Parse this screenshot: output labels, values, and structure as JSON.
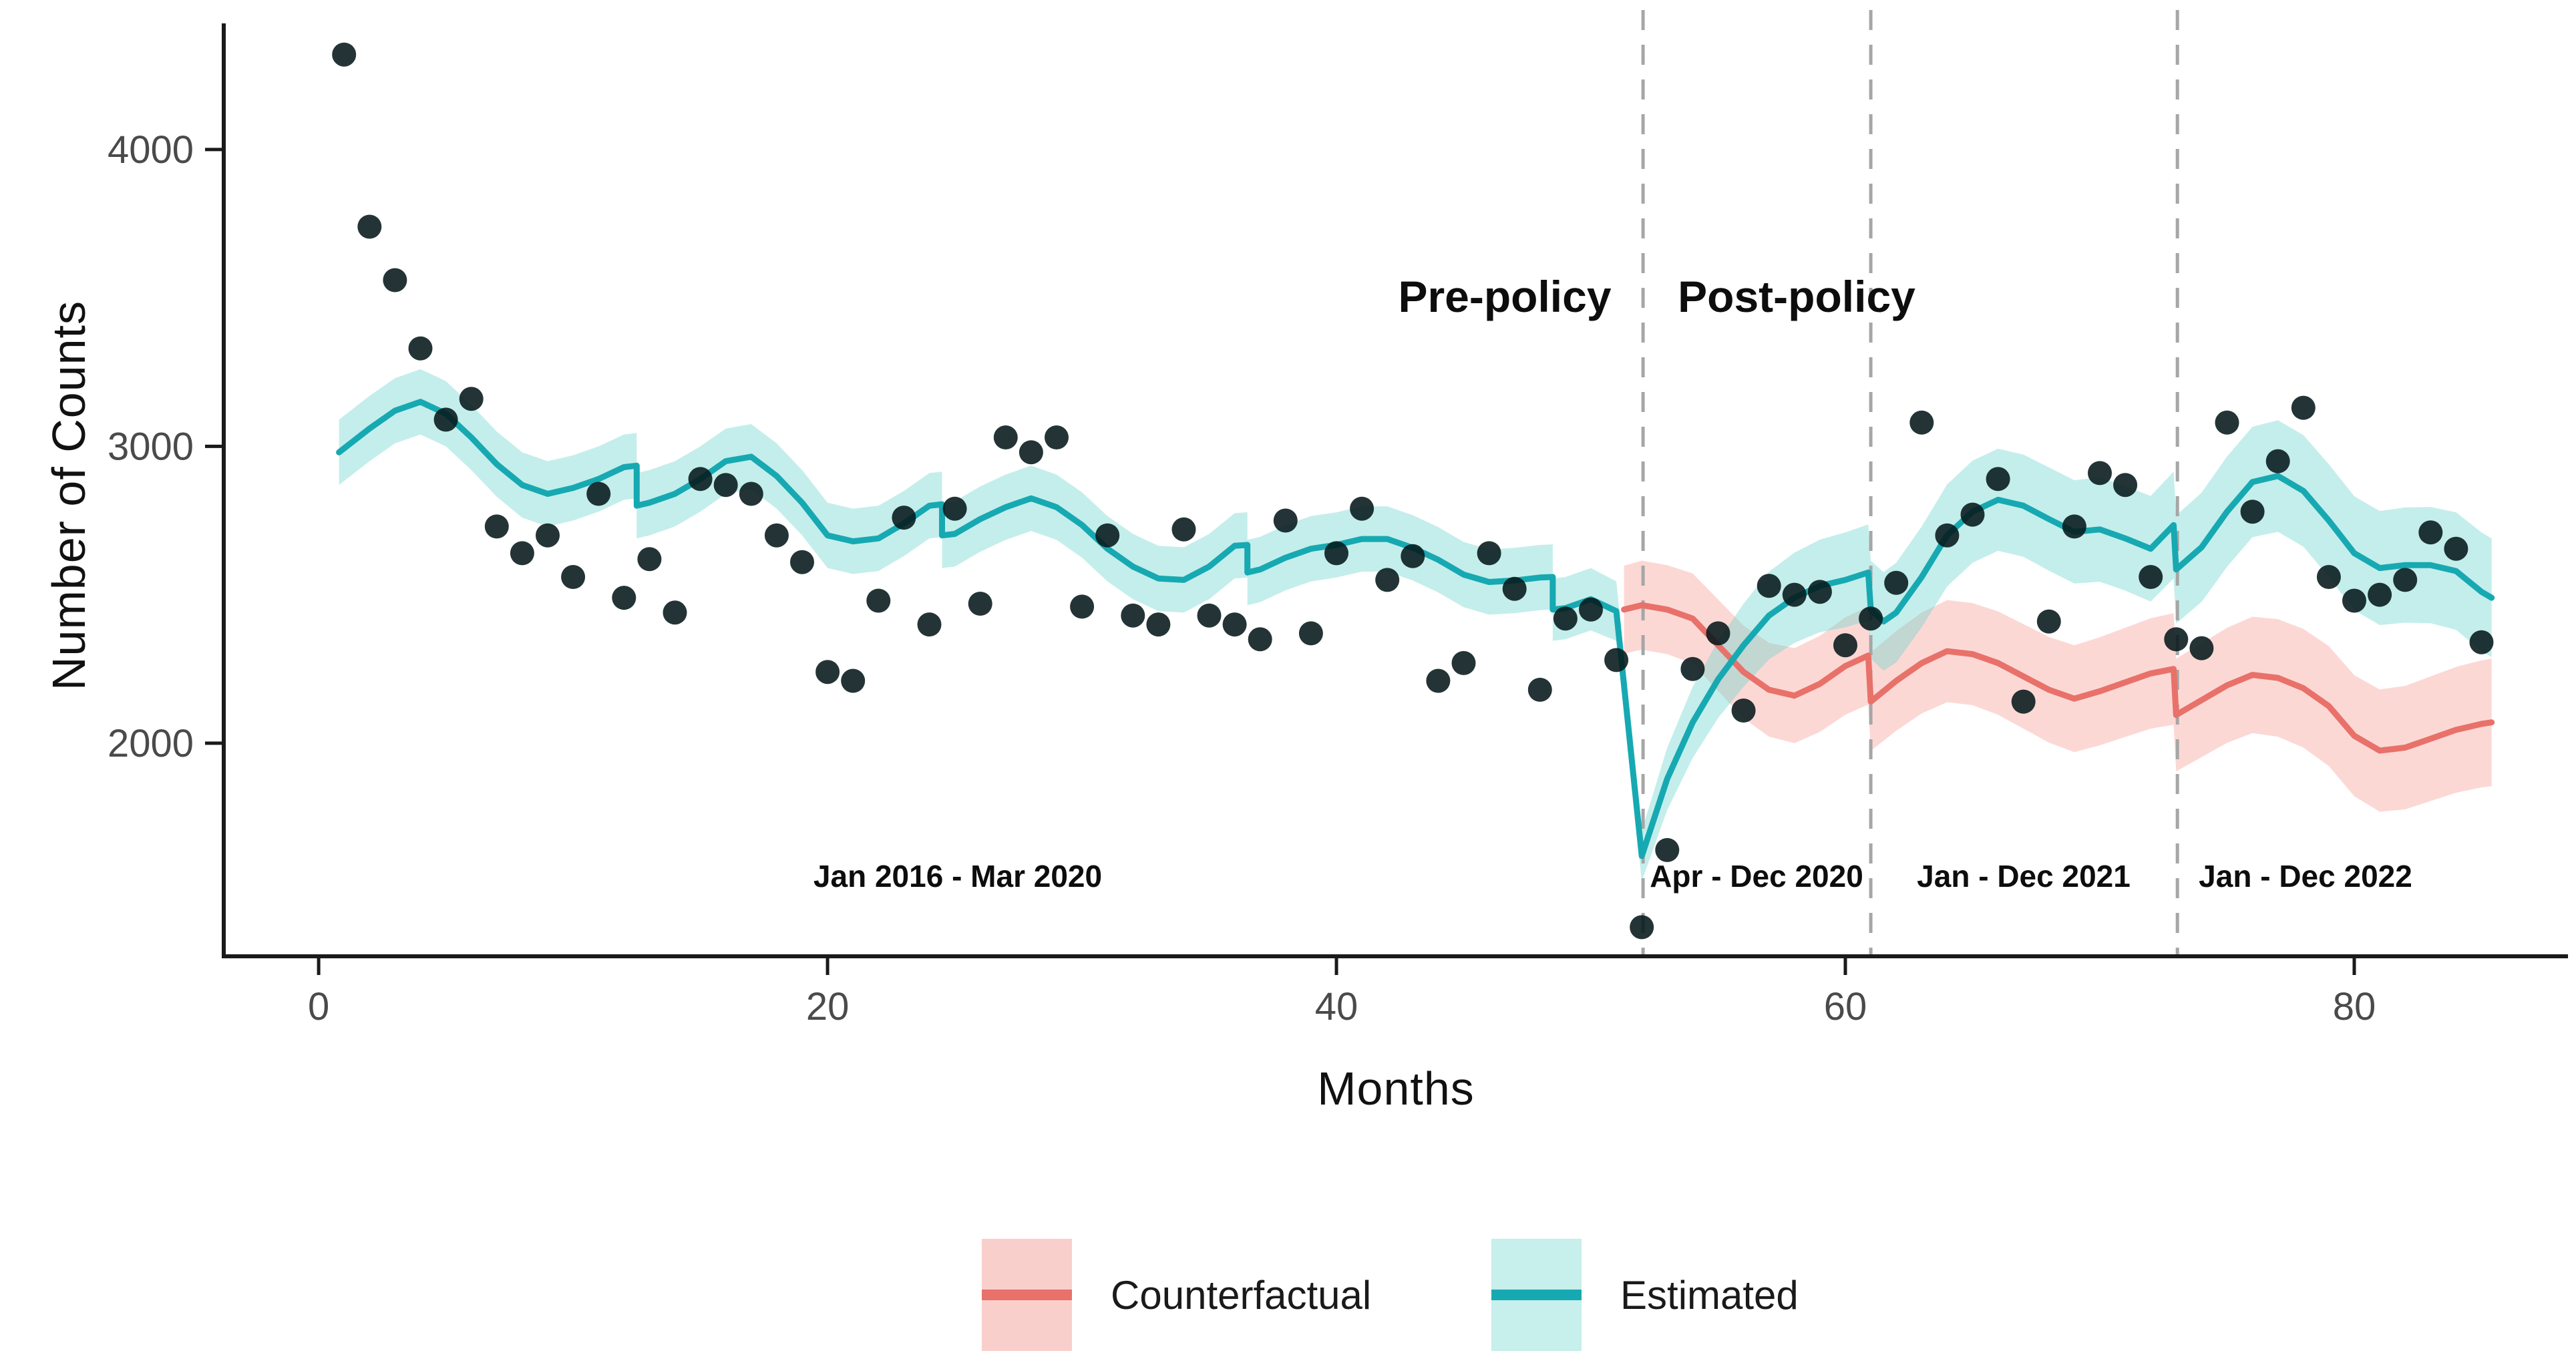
{
  "figure": {
    "background": "#ffffff",
    "kind": "interrupted-time-series-plot"
  },
  "chart_data": {
    "type": "line",
    "title": "",
    "xlabel": "Months",
    "ylabel": "Number of Counts",
    "x_ticks": [
      0,
      20,
      40,
      60,
      80
    ],
    "y_ticks": [
      2000,
      3000,
      4000
    ],
    "x_range": [
      -3.73,
      88.4
    ],
    "y_range": [
      1282,
      4425
    ],
    "grid": "off",
    "legend_position": "bottom-center",
    "policy_line_months": [
      52.05,
      61.0,
      73.05
    ],
    "annotations": {
      "pre_policy": "Pre-policy",
      "post_policy": "Post-policy",
      "period_1": "Jan 2016 - Mar 2020",
      "period_2": "Apr - Dec 2020",
      "period_3": "Jan - Dec 2021",
      "period_4": "Jan - Dec 2022"
    },
    "scatter": {
      "name": "Observed monthly counts",
      "x": [
        1,
        2,
        3,
        4,
        5,
        6,
        7,
        8,
        9,
        10,
        11,
        12,
        13,
        14,
        15,
        16,
        17,
        18,
        19,
        20,
        21,
        22,
        23,
        24,
        25,
        26,
        27,
        28,
        29,
        30,
        31,
        32,
        33,
        34,
        35,
        36,
        37,
        38,
        39,
        40,
        41,
        42,
        43,
        44,
        45,
        46,
        47,
        48,
        49,
        50,
        51,
        52,
        53,
        54,
        55,
        56,
        57,
        58,
        59,
        60,
        61,
        62,
        63,
        64,
        65,
        66,
        67,
        68,
        69,
        70,
        71,
        72,
        73,
        74,
        75,
        76,
        77,
        78,
        79,
        80,
        81,
        82,
        83,
        84,
        85
      ],
      "y": [
        4320,
        3740,
        3560,
        3330,
        3090,
        3160,
        2730,
        2640,
        2700,
        2560,
        2840,
        2490,
        2620,
        2440,
        2890,
        2870,
        2840,
        2700,
        2610,
        2240,
        2210,
        2480,
        2760,
        2400,
        2790,
        2470,
        3030,
        2980,
        3030,
        2460,
        2700,
        2430,
        2400,
        2720,
        2430,
        2400,
        2350,
        2750,
        2370,
        2640,
        2790,
        2550,
        2630,
        2210,
        2270,
        2640,
        2520,
        2180,
        2420,
        2450,
        2280,
        1380,
        1640,
        2250,
        2370,
        2110,
        2530,
        2500,
        2510,
        2330,
        2420,
        2540,
        3080,
        2700,
        2770,
        2890,
        2140,
        2410,
        2730,
        2910,
        2870,
        2560,
        2350,
        2320,
        3080,
        2780,
        2950,
        3130,
        2560,
        2480,
        2500,
        2550,
        2710,
        2655,
        2340
      ]
    },
    "series": [
      {
        "name": "Estimated",
        "points_mvc": [
          [
            0.8,
            2980,
            110
          ],
          [
            2,
            3060,
            110
          ],
          [
            3,
            3120,
            110
          ],
          [
            4,
            3150,
            110
          ],
          [
            5,
            3110,
            110
          ],
          [
            6,
            3030,
            110
          ],
          [
            7,
            2940,
            110
          ],
          [
            8,
            2870,
            110
          ],
          [
            9,
            2840,
            110
          ],
          [
            10,
            2860,
            110
          ],
          [
            11,
            2890,
            110
          ],
          [
            12,
            2930,
            110
          ],
          [
            12.5,
            2935,
            110
          ],
          [
            12.5,
            2800,
            110
          ],
          [
            13,
            2810,
            110
          ],
          [
            14,
            2840,
            110
          ],
          [
            15,
            2890,
            110
          ],
          [
            16,
            2950,
            110
          ],
          [
            17,
            2965,
            110
          ],
          [
            18,
            2900,
            110
          ],
          [
            19,
            2810,
            110
          ],
          [
            20,
            2700,
            110
          ],
          [
            21,
            2680,
            110
          ],
          [
            22,
            2690,
            110
          ],
          [
            23,
            2740,
            110
          ],
          [
            24,
            2800,
            110
          ],
          [
            24.5,
            2805,
            110
          ],
          [
            24.5,
            2700,
            110
          ],
          [
            25,
            2705,
            110
          ],
          [
            26,
            2755,
            110
          ],
          [
            27,
            2795,
            110
          ],
          [
            28,
            2825,
            110
          ],
          [
            29,
            2795,
            110
          ],
          [
            30,
            2735,
            110
          ],
          [
            31,
            2655,
            110
          ],
          [
            32,
            2595,
            110
          ],
          [
            33,
            2555,
            110
          ],
          [
            34,
            2550,
            110
          ],
          [
            35,
            2595,
            110
          ],
          [
            36,
            2665,
            110
          ],
          [
            36.5,
            2668,
            110
          ],
          [
            36.5,
            2575,
            110
          ],
          [
            37,
            2585,
            110
          ],
          [
            38,
            2625,
            110
          ],
          [
            39,
            2655,
            110
          ],
          [
            40,
            2668,
            110
          ],
          [
            41,
            2688,
            110
          ],
          [
            42,
            2688,
            110
          ],
          [
            43,
            2658,
            110
          ],
          [
            44,
            2618,
            110
          ],
          [
            45,
            2568,
            110
          ],
          [
            46,
            2543,
            110
          ],
          [
            47,
            2548,
            110
          ],
          [
            48,
            2558,
            110
          ],
          [
            48.5,
            2560,
            110
          ],
          [
            48.5,
            2450,
            105
          ],
          [
            49,
            2455,
            105
          ],
          [
            50,
            2485,
            105
          ],
          [
            51,
            2445,
            100
          ],
          [
            52,
            1620,
            85
          ],
          [
            53,
            1880,
            105
          ],
          [
            54,
            2070,
            120
          ],
          [
            55,
            2215,
            130
          ],
          [
            56,
            2330,
            140
          ],
          [
            57,
            2430,
            148
          ],
          [
            58,
            2490,
            152
          ],
          [
            59,
            2530,
            156
          ],
          [
            60,
            2550,
            160
          ],
          [
            60.9,
            2575,
            162
          ],
          [
            61,
            2450,
            165
          ],
          [
            61.5,
            2410,
            166
          ],
          [
            62,
            2440,
            168
          ],
          [
            63,
            2560,
            170
          ],
          [
            64,
            2700,
            172
          ],
          [
            65,
            2780,
            172
          ],
          [
            66,
            2820,
            172
          ],
          [
            67,
            2800,
            172
          ],
          [
            68,
            2755,
            174
          ],
          [
            69,
            2712,
            174
          ],
          [
            70,
            2720,
            176
          ],
          [
            71,
            2690,
            176
          ],
          [
            72,
            2655,
            178
          ],
          [
            72.9,
            2735,
            180
          ],
          [
            73,
            2585,
            182
          ],
          [
            74,
            2660,
            184
          ],
          [
            75,
            2780,
            186
          ],
          [
            76,
            2880,
            186
          ],
          [
            77,
            2900,
            188
          ],
          [
            78,
            2850,
            188
          ],
          [
            79,
            2750,
            190
          ],
          [
            80,
            2640,
            192
          ],
          [
            81,
            2590,
            192
          ],
          [
            82,
            2600,
            194
          ],
          [
            83,
            2600,
            196
          ],
          [
            84,
            2580,
            198
          ],
          [
            85,
            2510,
            200
          ],
          [
            85.4,
            2490,
            200
          ]
        ]
      },
      {
        "name": "Counterfactual",
        "points_mvc": [
          [
            51.3,
            2450,
            148
          ],
          [
            52,
            2465,
            150
          ],
          [
            53,
            2450,
            150
          ],
          [
            54,
            2420,
            152
          ],
          [
            55,
            2330,
            154
          ],
          [
            56,
            2240,
            156
          ],
          [
            57,
            2180,
            158
          ],
          [
            58,
            2160,
            160
          ],
          [
            59,
            2200,
            162
          ],
          [
            60,
            2260,
            164
          ],
          [
            60.9,
            2295,
            165
          ],
          [
            61,
            2140,
            166
          ],
          [
            62,
            2210,
            168
          ],
          [
            63,
            2270,
            170
          ],
          [
            64,
            2310,
            172
          ],
          [
            65,
            2300,
            172
          ],
          [
            66,
            2270,
            174
          ],
          [
            67,
            2225,
            176
          ],
          [
            68,
            2180,
            178
          ],
          [
            69,
            2150,
            180
          ],
          [
            70,
            2175,
            182
          ],
          [
            71,
            2205,
            184
          ],
          [
            72,
            2235,
            186
          ],
          [
            72.9,
            2250,
            188
          ],
          [
            73,
            2095,
            190
          ],
          [
            74,
            2145,
            192
          ],
          [
            75,
            2195,
            194
          ],
          [
            76,
            2230,
            196
          ],
          [
            77,
            2220,
            198
          ],
          [
            78,
            2185,
            200
          ],
          [
            79,
            2125,
            202
          ],
          [
            80,
            2025,
            204
          ],
          [
            81,
            1975,
            206
          ],
          [
            82,
            1985,
            208
          ],
          [
            83,
            2015,
            210
          ],
          [
            84,
            2045,
            212
          ],
          [
            85,
            2065,
            214
          ],
          [
            85.4,
            2070,
            215
          ]
        ]
      }
    ],
    "legend": [
      {
        "label": "Counterfactual",
        "line_color": "#E8716A",
        "band_color": "#F9CFCB"
      },
      {
        "label": "Estimated",
        "line_color": "#17A9B2",
        "band_color": "#C7EFEC"
      }
    ],
    "colors": {
      "estimated_line": "#17A9B2",
      "estimated_band_rgba": "rgba(108,212,205,0.40)",
      "counterfactual_line": "#E8716A",
      "counterfactual_band_rgba": "rgba(246,134,125,0.32)",
      "points": "#06181A",
      "dashed_line": "#A6A6A6",
      "axis": "#1a1a1a",
      "tick_text": "#4a4a4a"
    }
  }
}
